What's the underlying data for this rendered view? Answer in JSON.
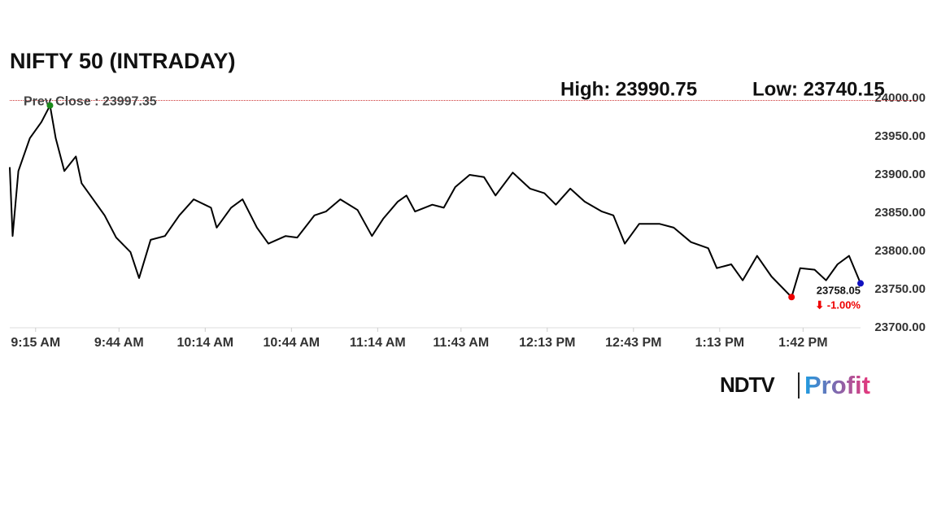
{
  "chart_data": {
    "type": "line",
    "title": "NIFTY 50 (INTRADAY)",
    "high_label": "High: 23990.75",
    "low_label": "Low: 23740.15",
    "prev_close_label": "Prev Close : 23997.35",
    "prev_close": 23997.35,
    "last_label": "23758.05",
    "change_label": "⬇ -1.00%",
    "x": [
      546,
      547,
      549,
      553,
      557,
      560,
      562,
      565,
      569,
      571,
      575,
      579,
      583,
      588,
      591,
      595,
      600,
      605,
      610,
      616,
      618,
      623,
      627,
      632,
      636,
      642,
      646,
      652,
      656,
      661,
      667,
      672,
      676,
      681,
      684,
      687,
      693,
      697,
      701,
      706,
      711,
      715,
      721,
      727,
      732,
      736,
      741,
      746,
      752,
      756,
      760,
      765,
      772,
      777,
      783,
      789,
      792,
      797,
      801,
      806,
      811,
      818,
      821,
      826,
      830,
      834,
      838,
      842
    ],
    "series": [
      {
        "name": "NIFTY 50",
        "color": "#000000",
        "values": [
          23910,
          23820,
          23905,
          23948,
          23969,
          23990.75,
          23948,
          23905,
          23924,
          23889,
          23868,
          23847,
          23818,
          23799,
          23765,
          23815,
          23820,
          23847,
          23868,
          23857,
          23831,
          23857,
          23868,
          23831,
          23810,
          23820,
          23818,
          23847,
          23852,
          23868,
          23854,
          23820,
          23843,
          23865,
          23873,
          23852,
          23861,
          23857,
          23884,
          23900,
          23897,
          23873,
          23903,
          23882,
          23876,
          23861,
          23882,
          23865,
          23852,
          23847,
          23810,
          23836,
          23836,
          23831,
          23812,
          23804,
          23778,
          23783,
          23762,
          23794,
          23767,
          23740.15,
          23778,
          23776,
          23762,
          23783,
          23794,
          23758.05
        ]
      }
    ],
    "xlim": [
      546,
      842
    ],
    "xticks": [
      {
        "value": 555,
        "label": "9:15 AM"
      },
      {
        "value": 584,
        "label": "9:44 AM"
      },
      {
        "value": 614,
        "label": "10:14 AM"
      },
      {
        "value": 644,
        "label": "10:44 AM"
      },
      {
        "value": 674,
        "label": "11:14 AM"
      },
      {
        "value": 703,
        "label": "11:43 AM"
      },
      {
        "value": 733,
        "label": "12:13 PM"
      },
      {
        "value": 763,
        "label": "12:43 PM"
      },
      {
        "value": 793,
        "label": "1:13 PM"
      },
      {
        "value": 822,
        "label": "1:42 PM"
      }
    ],
    "ylim": [
      23700,
      24000
    ],
    "yticks": [
      {
        "value": 23700,
        "label": "23700.00"
      },
      {
        "value": 23750,
        "label": "23750.00"
      },
      {
        "value": 23800,
        "label": "23800.00"
      },
      {
        "value": 23850,
        "label": "23850.00"
      },
      {
        "value": 23900,
        "label": "23900.00"
      },
      {
        "value": 23950,
        "label": "23950.00"
      },
      {
        "value": 24000,
        "label": "24000.00"
      }
    ],
    "grid": false
  },
  "logo": {
    "brand": "NDTV",
    "product": "Profit"
  }
}
